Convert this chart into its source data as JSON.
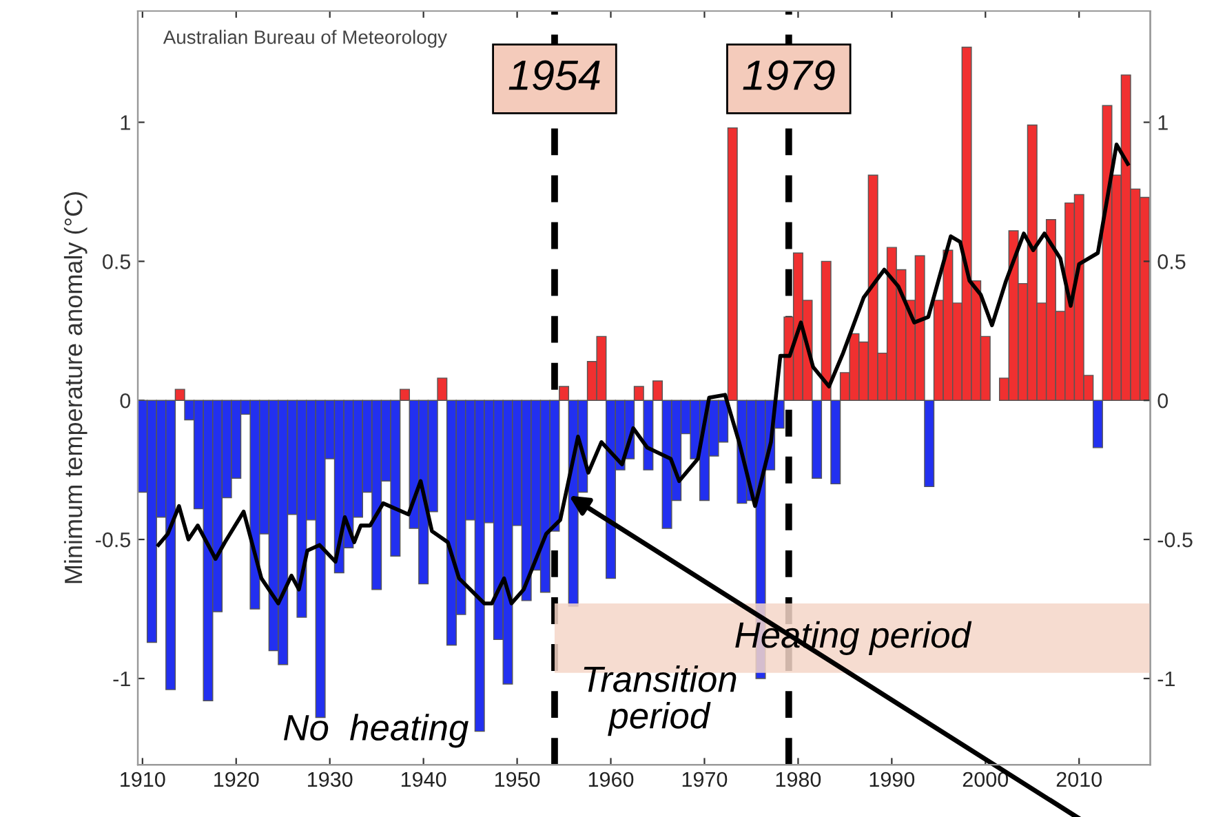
{
  "chart_data": {
    "type": "bar",
    "ylabel": "Minimum temperature anomaly (°C)",
    "series": [
      {
        "x": [
          1910,
          1911,
          1912,
          1913,
          1914,
          1915,
          1916,
          1917,
          1918,
          1919,
          1920,
          1921,
          1922,
          1923,
          1924,
          1925,
          1926,
          1927,
          1928,
          1929,
          1930,
          1931,
          1932,
          1933,
          1934,
          1935,
          1936,
          1937,
          1938,
          1939,
          1940,
          1941,
          1942,
          1943,
          1944,
          1945,
          1946,
          1947,
          1948,
          1949,
          1950,
          1951,
          1952,
          1953,
          1954,
          1955,
          1956,
          1957,
          1958,
          1959,
          1960,
          1961,
          1962,
          1963,
          1964,
          1965,
          1966,
          1967,
          1968,
          1969,
          1970,
          1971,
          1972,
          1973,
          1974,
          1975,
          1976,
          1977,
          1978,
          1979,
          1980,
          1981,
          1982,
          1983,
          1984,
          1985,
          1986,
          1987,
          1988,
          1989,
          1990,
          1991,
          1992,
          1993,
          1994,
          1995,
          1996,
          1997,
          1998,
          1999,
          2000,
          2001,
          2002,
          2003,
          2004,
          2005,
          2006,
          2007,
          2008,
          2009,
          2010,
          2011,
          2012,
          2013,
          2014,
          2015,
          2016,
          2017
        ],
        "values": [
          -0.33,
          -0.87,
          -0.42,
          -1.04,
          0.04,
          -0.07,
          -0.39,
          -1.08,
          -0.76,
          -0.35,
          -0.28,
          -0.05,
          -0.75,
          -0.48,
          -0.9,
          -0.95,
          -0.41,
          -0.78,
          -0.43,
          -1.14,
          -0.21,
          -0.62,
          -0.53,
          -0.42,
          -0.33,
          -0.68,
          -0.29,
          -0.56,
          0.04,
          -0.46,
          -0.66,
          -0.4,
          0.08,
          -0.88,
          -0.77,
          -0.43,
          -1.19,
          -0.44,
          -0.86,
          -1.02,
          -0.45,
          -0.72,
          -0.61,
          -0.69,
          -0.47,
          0.05,
          -0.74,
          -0.33,
          0.14,
          0.23,
          -0.64,
          -0.25,
          -0.21,
          0.05,
          -0.25,
          0.07,
          -0.46,
          -0.36,
          -0.12,
          -0.21,
          -0.36,
          -0.2,
          -0.15,
          0.98,
          -0.37,
          -0.36,
          -1.0,
          -0.25,
          -0.1,
          0.3,
          0.53,
          0.36,
          -0.28,
          0.5,
          -0.3,
          0.1,
          0.24,
          0.21,
          0.81,
          0.17,
          0.55,
          0.47,
          0.36,
          0.52,
          -0.31,
          0.36,
          0.54,
          0.35,
          1.27,
          0.43,
          0.23,
          null,
          0.08,
          0.61,
          0.42,
          0.99,
          0.35,
          0.65,
          0.32,
          0.71,
          0.74,
          0.09,
          -0.17,
          1.06,
          0.81,
          1.17,
          0.76,
          0.73
        ],
        "colors": [
          "#2230f0",
          "#2230f0",
          "#2230f0",
          "#2230f0",
          "#f03030",
          "#2230f0",
          "#2230f0",
          "#2230f0",
          "#2230f0",
          "#2230f0",
          "#2230f0",
          "#2230f0",
          "#2230f0",
          "#2230f0",
          "#2230f0",
          "#2230f0",
          "#2230f0",
          "#2230f0",
          "#2230f0",
          "#2230f0",
          "#2230f0",
          "#2230f0",
          "#2230f0",
          "#2230f0",
          "#2230f0",
          "#2230f0",
          "#2230f0",
          "#2230f0",
          "#f03030",
          "#2230f0",
          "#2230f0",
          "#2230f0",
          "#f03030",
          "#2230f0",
          "#2230f0",
          "#2230f0",
          "#2230f0",
          "#2230f0",
          "#2230f0",
          "#2230f0",
          "#2230f0",
          "#2230f0",
          "#2230f0",
          "#2230f0",
          "#2230f0",
          "#f03030",
          "#2230f0",
          "#2230f0",
          "#f03030",
          "#f03030",
          "#2230f0",
          "#2230f0",
          "#2230f0",
          "#f03030",
          "#2230f0",
          "#f03030",
          "#2230f0",
          "#2230f0",
          "#2230f0",
          "#2230f0",
          "#2230f0",
          "#2230f0",
          "#2230f0",
          "#f03030",
          "#2230f0",
          "#2230f0",
          "#2230f0",
          "#2230f0",
          "#2230f0",
          "#f03030",
          "#f03030",
          "#f03030",
          "#2230f0",
          "#f03030",
          "#2230f0",
          "#f03030",
          "#f03030",
          "#f03030",
          "#f03030",
          "#f03030",
          "#f03030",
          "#f03030",
          "#f03030",
          "#f03030",
          "#2230f0",
          "#f03030",
          "#f03030",
          "#f03030",
          "#f03030",
          "#f03030",
          "#f03030",
          "#f03030",
          "#f03030",
          "#f03030",
          "#f03030",
          "#f03030",
          "#f03030",
          "#f03030",
          "#f03030",
          "#f03030",
          "#f03030",
          "#f03030",
          "#2230f0",
          "#f03030",
          "#f03030",
          "#f03030",
          "#f03030",
          "#f03030"
        ]
      },
      {
        "type": "line",
        "color": "#000000",
        "x": [
          1911.7,
          1912.7,
          1913.9,
          1914.9,
          1915.9,
          1917.8,
          1918.8,
          1920.8,
          1922.7,
          1924.5,
          1925.9,
          1926.7,
          1927.6,
          1928.9,
          1930.6,
          1931.6,
          1932.6,
          1933.3,
          1934.3,
          1935.7,
          1938.4,
          1939.7,
          1940.9,
          1942.6,
          1943.8,
          1945.0,
          1946.5,
          1947.3,
          1948.6,
          1949.4,
          1950.7,
          1953.1,
          1954.6,
          1956.5,
          1957.6,
          1959.0,
          1961.2,
          1962.4,
          1963.9,
          1966.4,
          1967.3,
          1969.3,
          1970.5,
          1972.2,
          1973.7,
          1975.4,
          1977.1,
          1978.1,
          1979.1,
          1980.3,
          1981.6,
          1983.3,
          1984.8,
          1987.0,
          1989.2,
          1990.7,
          1992.4,
          1993.9,
          1996.3,
          1997.3,
          1998.3,
          1999.5,
          2000.7,
          2002.2,
          2004.1,
          2005.1,
          2006.3,
          2008.0,
          2009.1,
          2010.0,
          2012.0,
          2014.0,
          2015.2
        ],
        "values": [
          -0.52,
          -0.48,
          -0.38,
          -0.5,
          -0.45,
          -0.57,
          -0.51,
          -0.4,
          -0.64,
          -0.73,
          -0.63,
          -0.68,
          -0.54,
          -0.52,
          -0.58,
          -0.42,
          -0.51,
          -0.45,
          -0.45,
          -0.37,
          -0.41,
          -0.29,
          -0.47,
          -0.51,
          -0.64,
          -0.68,
          -0.73,
          -0.73,
          -0.64,
          -0.73,
          -0.68,
          -0.48,
          -0.43,
          -0.13,
          -0.26,
          -0.15,
          -0.23,
          -0.1,
          -0.17,
          -0.21,
          -0.29,
          -0.21,
          0.01,
          0.02,
          -0.15,
          -0.38,
          -0.15,
          0.16,
          0.16,
          0.28,
          0.12,
          0.05,
          0.17,
          0.37,
          0.47,
          0.41,
          0.28,
          0.3,
          0.59,
          0.57,
          0.43,
          0.38,
          0.27,
          0.43,
          0.6,
          0.54,
          0.6,
          0.51,
          0.34,
          0.49,
          0.53,
          0.92,
          0.85
        ]
      }
    ],
    "xlim": [
      1909.5,
      2017.6
    ],
    "xticks": [
      1910,
      1920,
      1930,
      1940,
      1950,
      1960,
      1970,
      1980,
      1990,
      2000,
      2010
    ],
    "ylim": [
      -1.31,
      1.4
    ],
    "yticks": [
      -1,
      -0.5,
      0,
      0.5,
      1
    ],
    "y2lim": [
      -1.31,
      1.4
    ],
    "y2ticks": [
      -1,
      -0.5,
      0,
      0.5,
      1
    ],
    "ref_lines": [
      {
        "axis": "x",
        "value": 1954,
        "label": "1954",
        "line_style": "dashed",
        "color": "#000000"
      },
      {
        "axis": "x",
        "value": 1979,
        "label": "1979",
        "line_style": "dashed",
        "color": "#000000"
      }
    ],
    "bands": [
      {
        "axis": "y",
        "from": -0.98,
        "to": -0.73,
        "label": "Heating period",
        "color": "#f4d6c8"
      }
    ],
    "annotations": [
      "Australian Bureau of Meteorology",
      "No  heating",
      "Transition\nperiod"
    ],
    "grid": false,
    "legend": false
  }
}
